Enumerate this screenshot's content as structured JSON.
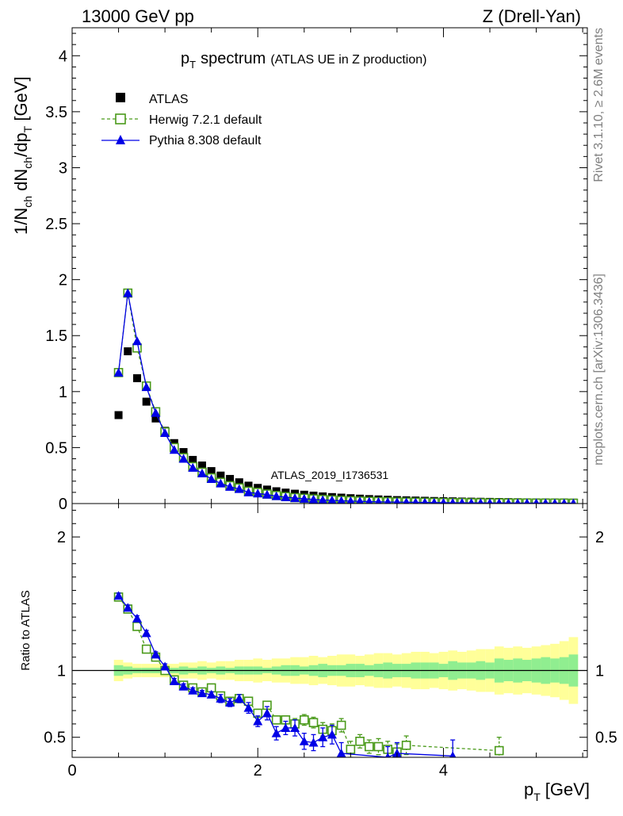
{
  "header": {
    "left": "13000 GeV pp",
    "right": "Z (Drell-Yan)"
  },
  "side": {
    "rivet": "Rivet 3.1.10, ≥ 2.6M events",
    "mcplots": "mcplots.cern.ch [arXiv:1306.3436]"
  },
  "chart_data": [
    {
      "type": "scatter",
      "title_main": "p",
      "title_sub": "T",
      "title_word": "spectrum",
      "title_extra": "(ATLAS UE in Z production)",
      "ylabel": "1/N_ch dN_ch/dp_T [GeV]",
      "watermark": "ATLAS_2019_I1736531",
      "xlim": [
        0,
        5.55
      ],
      "ylim": [
        0,
        4.25
      ],
      "yticks": [
        0,
        0.5,
        1,
        1.5,
        2,
        2.5,
        3,
        3.5,
        4
      ],
      "yticklabels": [
        "0",
        "0.5",
        "1",
        "1.5",
        "2",
        "2.5",
        "3",
        "3.5",
        "4"
      ],
      "legend_position": "top-left",
      "series": [
        {
          "name": "ATLAS",
          "color": "#000000",
          "marker": "filled-square",
          "x": [
            0.5,
            0.6,
            0.7,
            0.8,
            0.9,
            1.0,
            1.1,
            1.2,
            1.3,
            1.4,
            1.5,
            1.6,
            1.7,
            1.8,
            1.9,
            2.0,
            2.1,
            2.2,
            2.3,
            2.4,
            2.5,
            2.6,
            2.7,
            2.8,
            2.9,
            3.0,
            3.1,
            3.2,
            3.3,
            3.4,
            3.5,
            3.6,
            3.7,
            3.8,
            3.9,
            4.0,
            4.1,
            4.2,
            4.3,
            4.4,
            4.5,
            4.6,
            4.7,
            4.8,
            4.9,
            5.0,
            5.1,
            5.2,
            5.3,
            5.4
          ],
          "y": [
            0.79,
            1.36,
            1.12,
            0.91,
            0.76,
            0.65,
            0.54,
            0.46,
            0.39,
            0.34,
            0.29,
            0.25,
            0.22,
            0.19,
            0.16,
            0.14,
            0.125,
            0.11,
            0.098,
            0.088,
            0.079,
            0.071,
            0.064,
            0.058,
            0.053,
            0.048,
            0.044,
            0.04,
            0.037,
            0.034,
            0.031,
            0.029,
            0.027,
            0.025,
            0.023,
            0.021,
            0.02,
            0.018,
            0.017,
            0.016,
            0.015,
            0.014,
            0.013,
            0.012,
            0.011,
            0.01,
            0.01,
            0.009,
            0.009,
            0.008
          ]
        },
        {
          "name": "Herwig 7.2.1 default",
          "color": "#4a9a1a",
          "marker": "open-square",
          "line": "dashed",
          "x": [
            0.5,
            0.6,
            0.7,
            0.8,
            0.9,
            1.0,
            1.1,
            1.2,
            1.3,
            1.4,
            1.5,
            1.6,
            1.7,
            1.8,
            1.9,
            2.0,
            2.1,
            2.2,
            2.3,
            2.4,
            2.5,
            2.6,
            2.7,
            2.8,
            2.9,
            3.0,
            3.1,
            3.2,
            3.3,
            3.4,
            3.5,
            3.6,
            3.7,
            3.8,
            3.9,
            4.0,
            4.1,
            4.2,
            4.3,
            4.4,
            4.5,
            4.6,
            4.7,
            4.8,
            4.9,
            5.0,
            5.1,
            5.2,
            5.3,
            5.4
          ],
          "y": [
            1.17,
            1.88,
            1.39,
            1.05,
            0.82,
            0.64,
            0.5,
            0.41,
            0.33,
            0.28,
            0.23,
            0.19,
            0.16,
            0.14,
            0.11,
            0.1,
            0.085,
            0.072,
            0.062,
            0.053,
            0.047,
            0.041,
            0.036,
            0.032,
            0.028,
            0.025,
            0.022,
            0.02,
            0.018,
            0.016,
            0.014,
            0.013,
            0.012,
            0.011,
            0.01,
            0.009,
            0.008,
            0.008,
            0.007,
            0.007,
            0.006,
            0.006,
            0.005,
            0.005,
            0.005,
            0.004,
            0.004,
            0.004,
            0.004,
            0.003
          ]
        },
        {
          "name": "Pythia 8.308 default",
          "color": "#0000e6",
          "marker": "filled-triangle",
          "line": "solid",
          "x": [
            0.5,
            0.6,
            0.7,
            0.8,
            0.9,
            1.0,
            1.1,
            1.2,
            1.3,
            1.4,
            1.5,
            1.6,
            1.7,
            1.8,
            1.9,
            2.0,
            2.1,
            2.2,
            2.3,
            2.4,
            2.5,
            2.6,
            2.7,
            2.8,
            2.9,
            3.0,
            3.1,
            3.2,
            3.3,
            3.4,
            3.5,
            3.6,
            3.7,
            3.8,
            3.9,
            4.0,
            4.1,
            4.2,
            4.3,
            4.4,
            4.5,
            4.6,
            4.7,
            4.8,
            4.9,
            5.0,
            5.1,
            5.2,
            5.3,
            5.4
          ],
          "y": [
            1.17,
            1.88,
            1.45,
            1.04,
            0.81,
            0.63,
            0.48,
            0.4,
            0.32,
            0.27,
            0.22,
            0.18,
            0.15,
            0.13,
            0.1,
            0.09,
            0.08,
            0.066,
            0.057,
            0.049,
            0.043,
            0.037,
            0.032,
            0.029,
            0.025,
            0.022,
            0.02,
            0.018,
            0.016,
            0.014,
            0.013,
            0.012,
            0.011,
            0.01,
            0.009,
            0.008,
            0.007,
            0.007,
            0.006,
            0.006,
            0.005,
            0.005,
            0.005,
            0.004,
            0.004,
            0.004,
            0.004,
            0.003,
            0.003,
            0.003
          ]
        }
      ]
    },
    {
      "type": "scatter",
      "ylabel": "Ratio to ATLAS",
      "xlabel_main": "p",
      "xlabel_sub": "T",
      "xlabel_unit": "[GeV]",
      "xlim": [
        0,
        5.55
      ],
      "ylim": [
        0.35,
        2.25
      ],
      "xticks": [
        0,
        2,
        4
      ],
      "xticklabels": [
        "0",
        "2",
        "4"
      ],
      "yticks": [
        0.5,
        1,
        2
      ],
      "yticklabels": [
        "0.5",
        "1",
        "2"
      ],
      "band_colors": {
        "inner": "#90ee90",
        "outer": "#ffff99"
      },
      "bands": {
        "x_edges": [
          0.45,
          0.55,
          0.65,
          0.75,
          0.85,
          0.95,
          1.05,
          1.15,
          1.25,
          1.35,
          1.45,
          1.55,
          1.65,
          1.75,
          1.85,
          1.95,
          2.05,
          2.15,
          2.25,
          2.35,
          2.45,
          2.55,
          2.65,
          2.75,
          2.85,
          2.95,
          3.05,
          3.15,
          3.25,
          3.35,
          3.45,
          3.55,
          3.65,
          3.75,
          3.85,
          3.95,
          4.05,
          4.15,
          4.25,
          4.35,
          4.45,
          4.55,
          4.65,
          4.75,
          4.85,
          4.95,
          5.05,
          5.15,
          5.25,
          5.35,
          5.45
        ],
        "inner": [
          0.04,
          0.03,
          0.02,
          0.02,
          0.02,
          0.02,
          0.02,
          0.03,
          0.02,
          0.03,
          0.02,
          0.03,
          0.02,
          0.03,
          0.03,
          0.03,
          0.02,
          0.03,
          0.04,
          0.04,
          0.03,
          0.04,
          0.05,
          0.04,
          0.04,
          0.05,
          0.05,
          0.04,
          0.05,
          0.06,
          0.05,
          0.05,
          0.06,
          0.06,
          0.06,
          0.05,
          0.07,
          0.06,
          0.06,
          0.07,
          0.06,
          0.09,
          0.08,
          0.09,
          0.08,
          0.09,
          0.1,
          0.09,
          0.1,
          0.12
        ],
        "outer": [
          0.08,
          0.06,
          0.05,
          0.05,
          0.05,
          0.05,
          0.05,
          0.06,
          0.06,
          0.07,
          0.06,
          0.07,
          0.07,
          0.08,
          0.08,
          0.09,
          0.08,
          0.09,
          0.09,
          0.1,
          0.1,
          0.11,
          0.1,
          0.11,
          0.12,
          0.12,
          0.11,
          0.12,
          0.13,
          0.13,
          0.12,
          0.13,
          0.14,
          0.14,
          0.13,
          0.14,
          0.15,
          0.14,
          0.15,
          0.16,
          0.16,
          0.18,
          0.17,
          0.18,
          0.17,
          0.18,
          0.19,
          0.2,
          0.22,
          0.25
        ]
      },
      "series": [
        {
          "name": "Herwig 7.2.1 default",
          "color": "#4a9a1a",
          "marker": "open-square",
          "line": "dashed",
          "x": [
            0.5,
            0.6,
            0.7,
            0.8,
            0.9,
            1.0,
            1.1,
            1.2,
            1.3,
            1.4,
            1.5,
            1.6,
            1.7,
            1.8,
            1.9,
            2.0,
            2.1,
            2.2,
            2.3,
            2.4,
            2.5,
            2.6,
            2.7,
            2.8,
            2.9,
            3.0,
            3.1,
            3.2,
            3.3,
            3.4,
            3.5,
            3.6,
            4.6
          ],
          "y": [
            1.55,
            1.46,
            1.33,
            1.16,
            1.1,
            1.0,
            0.93,
            0.89,
            0.87,
            0.84,
            0.87,
            0.81,
            0.77,
            0.79,
            0.77,
            0.68,
            0.74,
            0.63,
            0.63,
            0.6,
            0.63,
            0.61,
            0.56,
            0.55,
            0.59,
            0.41,
            0.47,
            0.43,
            0.43,
            0.41,
            0.39,
            0.44,
            0.4
          ],
          "err": [
            0.02,
            0.02,
            0.02,
            0.02,
            0.02,
            0.02,
            0.02,
            0.02,
            0.02,
            0.02,
            0.02,
            0.02,
            0.02,
            0.03,
            0.03,
            0.03,
            0.03,
            0.03,
            0.03,
            0.04,
            0.04,
            0.04,
            0.05,
            0.05,
            0.05,
            0.06,
            0.05,
            0.05,
            0.06,
            0.06,
            0.06,
            0.07,
            0.1
          ]
        },
        {
          "name": "Pythia 8.308 default",
          "color": "#0000e6",
          "marker": "filled-triangle",
          "line": "solid",
          "x": [
            0.5,
            0.6,
            0.7,
            0.8,
            0.9,
            1.0,
            1.1,
            1.2,
            1.3,
            1.4,
            1.5,
            1.6,
            1.7,
            1.8,
            1.9,
            2.0,
            2.1,
            2.2,
            2.3,
            2.4,
            2.5,
            2.6,
            2.7,
            2.8,
            2.9,
            3.4,
            3.5,
            4.1
          ],
          "y": [
            1.56,
            1.47,
            1.39,
            1.28,
            1.12,
            1.03,
            0.92,
            0.88,
            0.85,
            0.83,
            0.82,
            0.79,
            0.76,
            0.79,
            0.72,
            0.62,
            0.68,
            0.53,
            0.57,
            0.57,
            0.47,
            0.46,
            0.5,
            0.52,
            0.38,
            0.35,
            0.38,
            0.36
          ],
          "err": [
            0.02,
            0.02,
            0.02,
            0.02,
            0.02,
            0.02,
            0.02,
            0.02,
            0.02,
            0.02,
            0.02,
            0.03,
            0.03,
            0.03,
            0.04,
            0.04,
            0.05,
            0.05,
            0.05,
            0.06,
            0.06,
            0.06,
            0.07,
            0.07,
            0.08,
            0.08,
            0.08,
            0.12
          ]
        }
      ]
    }
  ]
}
